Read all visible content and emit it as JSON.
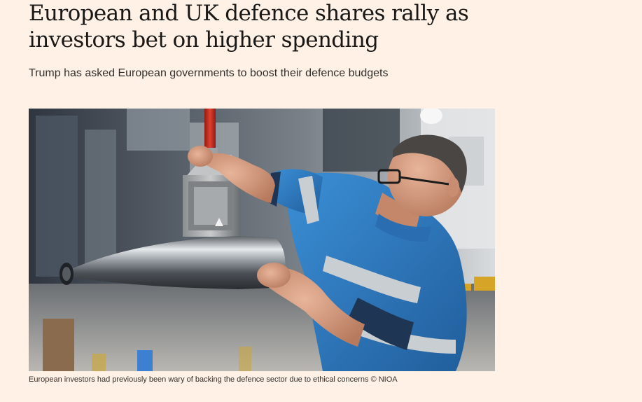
{
  "article": {
    "headline_line1": "European and UK defence shares rally as",
    "headline_line2": "investors bet on higher spending",
    "standfirst": "Trump has asked European governments to boost their defence budgets",
    "image": {
      "subject": "factory worker lifting artillery shell"
    },
    "caption": "European investors had previously been wary of backing the defence sector due to ethical concerns © NIOA"
  },
  "colors": {
    "page_background": "#fff1e5",
    "headline": "#1a1817",
    "body_text": "#33302e",
    "shirt_blue": "#2f7fc4",
    "reflective_stripe": "#c9ced3"
  }
}
